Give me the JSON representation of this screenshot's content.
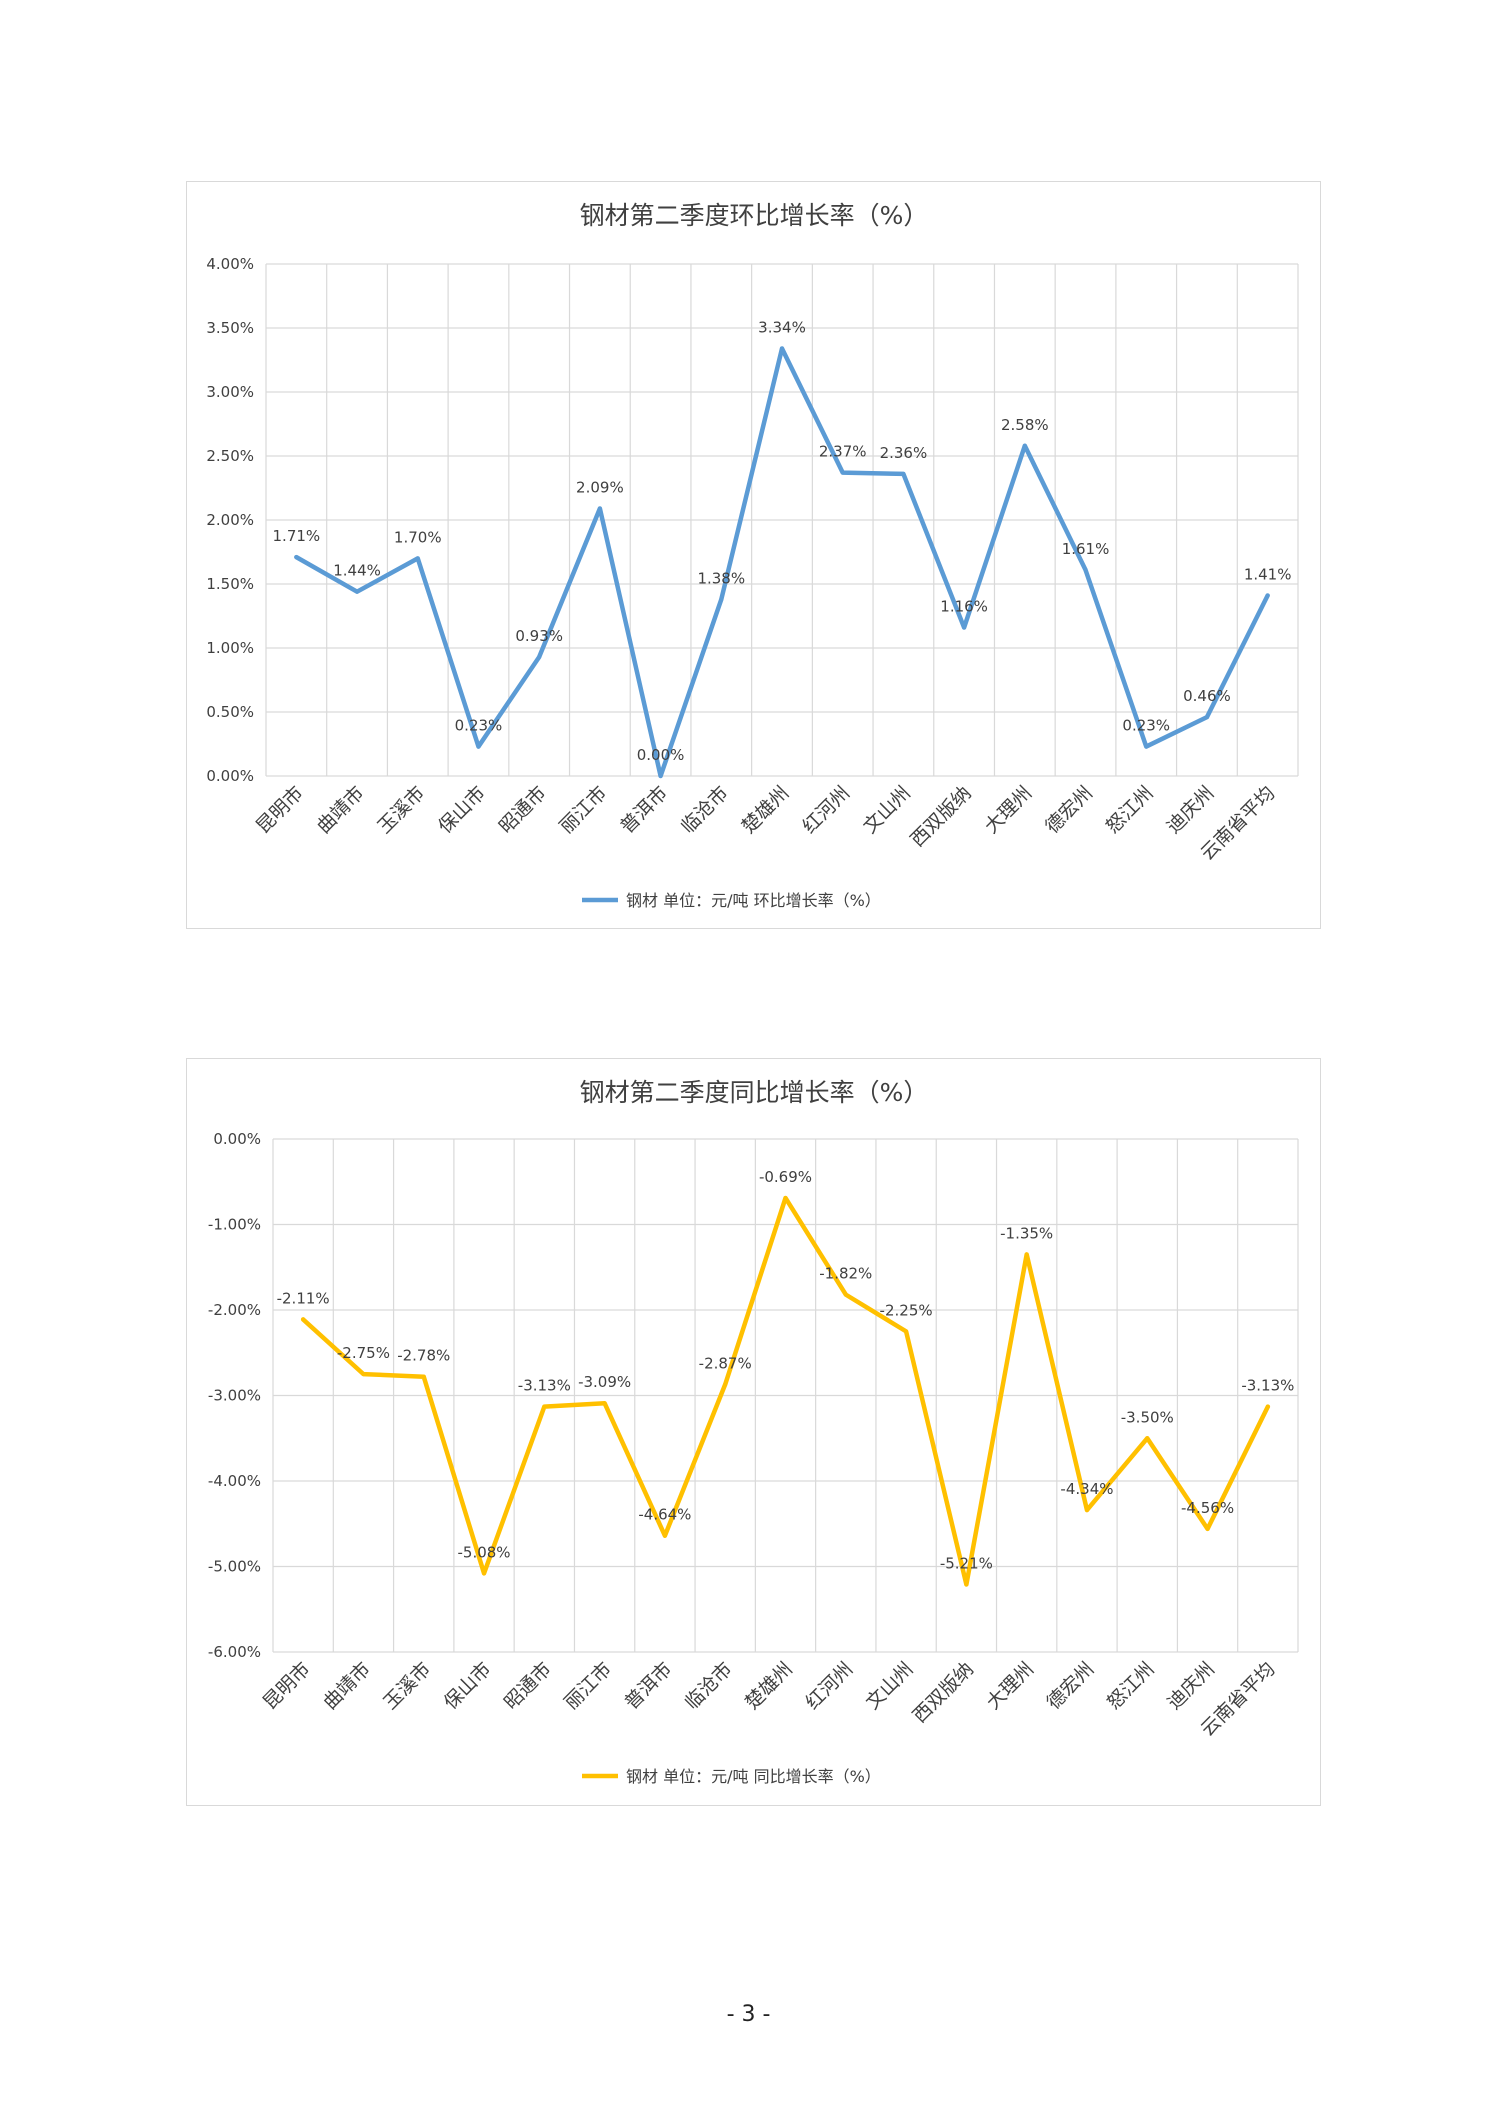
{
  "page": {
    "number": "- 3 -"
  },
  "chart_data": [
    {
      "type": "line",
      "title": "钢材第二季度环比增长率（%）",
      "categories": [
        "昆明市",
        "曲靖市",
        "玉溪市",
        "保山市",
        "昭通市",
        "丽江市",
        "普洱市",
        "临沧市",
        "楚雄州",
        "红河州",
        "文山州",
        "西双版纳",
        "大理州",
        "德宏州",
        "怒江州",
        "迪庆州",
        "云南省平均"
      ],
      "series": [
        {
          "name": "钢材 单位：元/吨 环比增长率（%）",
          "values": [
            1.71,
            1.44,
            1.7,
            0.23,
            0.93,
            2.09,
            0.0,
            1.38,
            3.34,
            2.37,
            2.36,
            1.16,
            2.58,
            1.61,
            0.23,
            0.46,
            1.41
          ]
        }
      ],
      "data_labels": [
        "1.71%",
        "1.44%",
        "1.70%",
        "0.23%",
        "0.93%",
        "2.09%",
        "0.00%",
        "1.38%",
        "3.34%",
        "2.37%",
        "2.36%",
        "1.16%",
        "2.58%",
        "1.61%",
        "0.23%",
        "0.46%",
        "1.41%"
      ],
      "y_ticks": [
        "0.00%",
        "0.50%",
        "1.00%",
        "1.50%",
        "2.00%",
        "2.50%",
        "3.00%",
        "3.50%",
        "4.00%"
      ],
      "ylim": [
        0,
        4
      ],
      "grid": true,
      "legend": "bottom",
      "color": "#5b9bd5"
    },
    {
      "type": "line",
      "title": "钢材第二季度同比增长率（%）",
      "categories": [
        "昆明市",
        "曲靖市",
        "玉溪市",
        "保山市",
        "昭通市",
        "丽江市",
        "普洱市",
        "临沧市",
        "楚雄州",
        "红河州",
        "文山州",
        "西双版纳",
        "大理州",
        "德宏州",
        "怒江州",
        "迪庆州",
        "云南省平均"
      ],
      "series": [
        {
          "name": "钢材 单位：元/吨 同比增长率（%）",
          "values": [
            -2.11,
            -2.75,
            -2.78,
            -5.08,
            -3.13,
            -3.09,
            -4.64,
            -2.87,
            -0.69,
            -1.82,
            -2.25,
            -5.21,
            -1.35,
            -4.34,
            -3.5,
            -4.56,
            -3.13
          ]
        }
      ],
      "data_labels": [
        "-2.11%",
        "-2.75%",
        "-2.78%",
        "-5.08%",
        "-3.13%",
        "-3.09%",
        "-4.64%",
        "-2.87%",
        "-0.69%",
        "-1.82%",
        "-2.25%",
        "-5.21%",
        "-1.35%",
        "-4.34%",
        "-3.50%",
        "-4.56%",
        "-3.13%"
      ],
      "y_ticks": [
        "-6.00%",
        "-5.00%",
        "-4.00%",
        "-3.00%",
        "-2.00%",
        "-1.00%",
        "0.00%"
      ],
      "ylim": [
        -6,
        0
      ],
      "grid": true,
      "legend": "bottom",
      "color": "#ffc000"
    }
  ]
}
